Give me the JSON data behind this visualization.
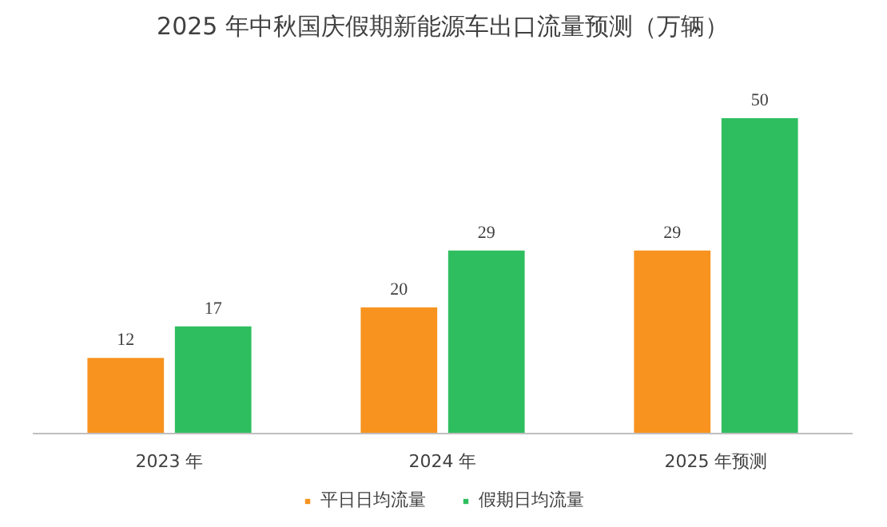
{
  "chart_data": {
    "type": "bar",
    "title": "2025 年中秋国庆假期新能源车出口流量预测（万辆）",
    "categories": [
      "2023 年",
      "2024 年",
      "2025 年预测"
    ],
    "series": [
      {
        "name": "平日日均流量",
        "color": "#f7931e",
        "values": [
          12,
          20,
          29
        ]
      },
      {
        "name": "假期日均流量",
        "color": "#2fbe5f",
        "values": [
          17,
          29,
          50
        ]
      }
    ],
    "data_labels": true,
    "grid": false,
    "legend": "bottom"
  }
}
